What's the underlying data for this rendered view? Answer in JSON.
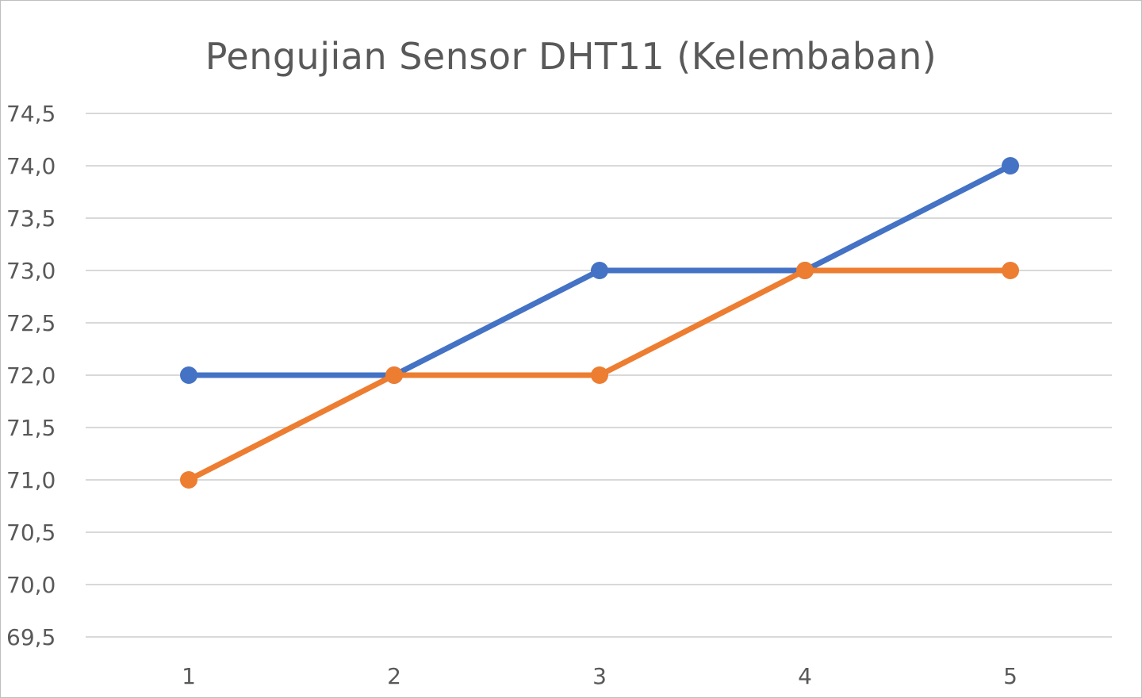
{
  "chart_data": {
    "type": "line",
    "title": "Pengujian Sensor DHT11 (Kelembaban)",
    "xlabel": "",
    "ylabel": "",
    "categories": [
      "1",
      "2",
      "3",
      "4",
      "5"
    ],
    "series": [
      {
        "values": [
          72.0,
          72.0,
          73.0,
          73.0,
          74.0
        ],
        "color": "#4472c4"
      },
      {
        "values": [
          71.0,
          72.0,
          72.0,
          73.0,
          73.0
        ],
        "color": "#ed7d31"
      }
    ],
    "ylim": [
      69.5,
      74.5
    ],
    "yticks": [
      "69,5",
      "70,0",
      "70,5",
      "71,0",
      "71,5",
      "72,0",
      "72,5",
      "73,0",
      "73,5",
      "74,0",
      "74,5"
    ],
    "grid": true,
    "legend": "none"
  }
}
